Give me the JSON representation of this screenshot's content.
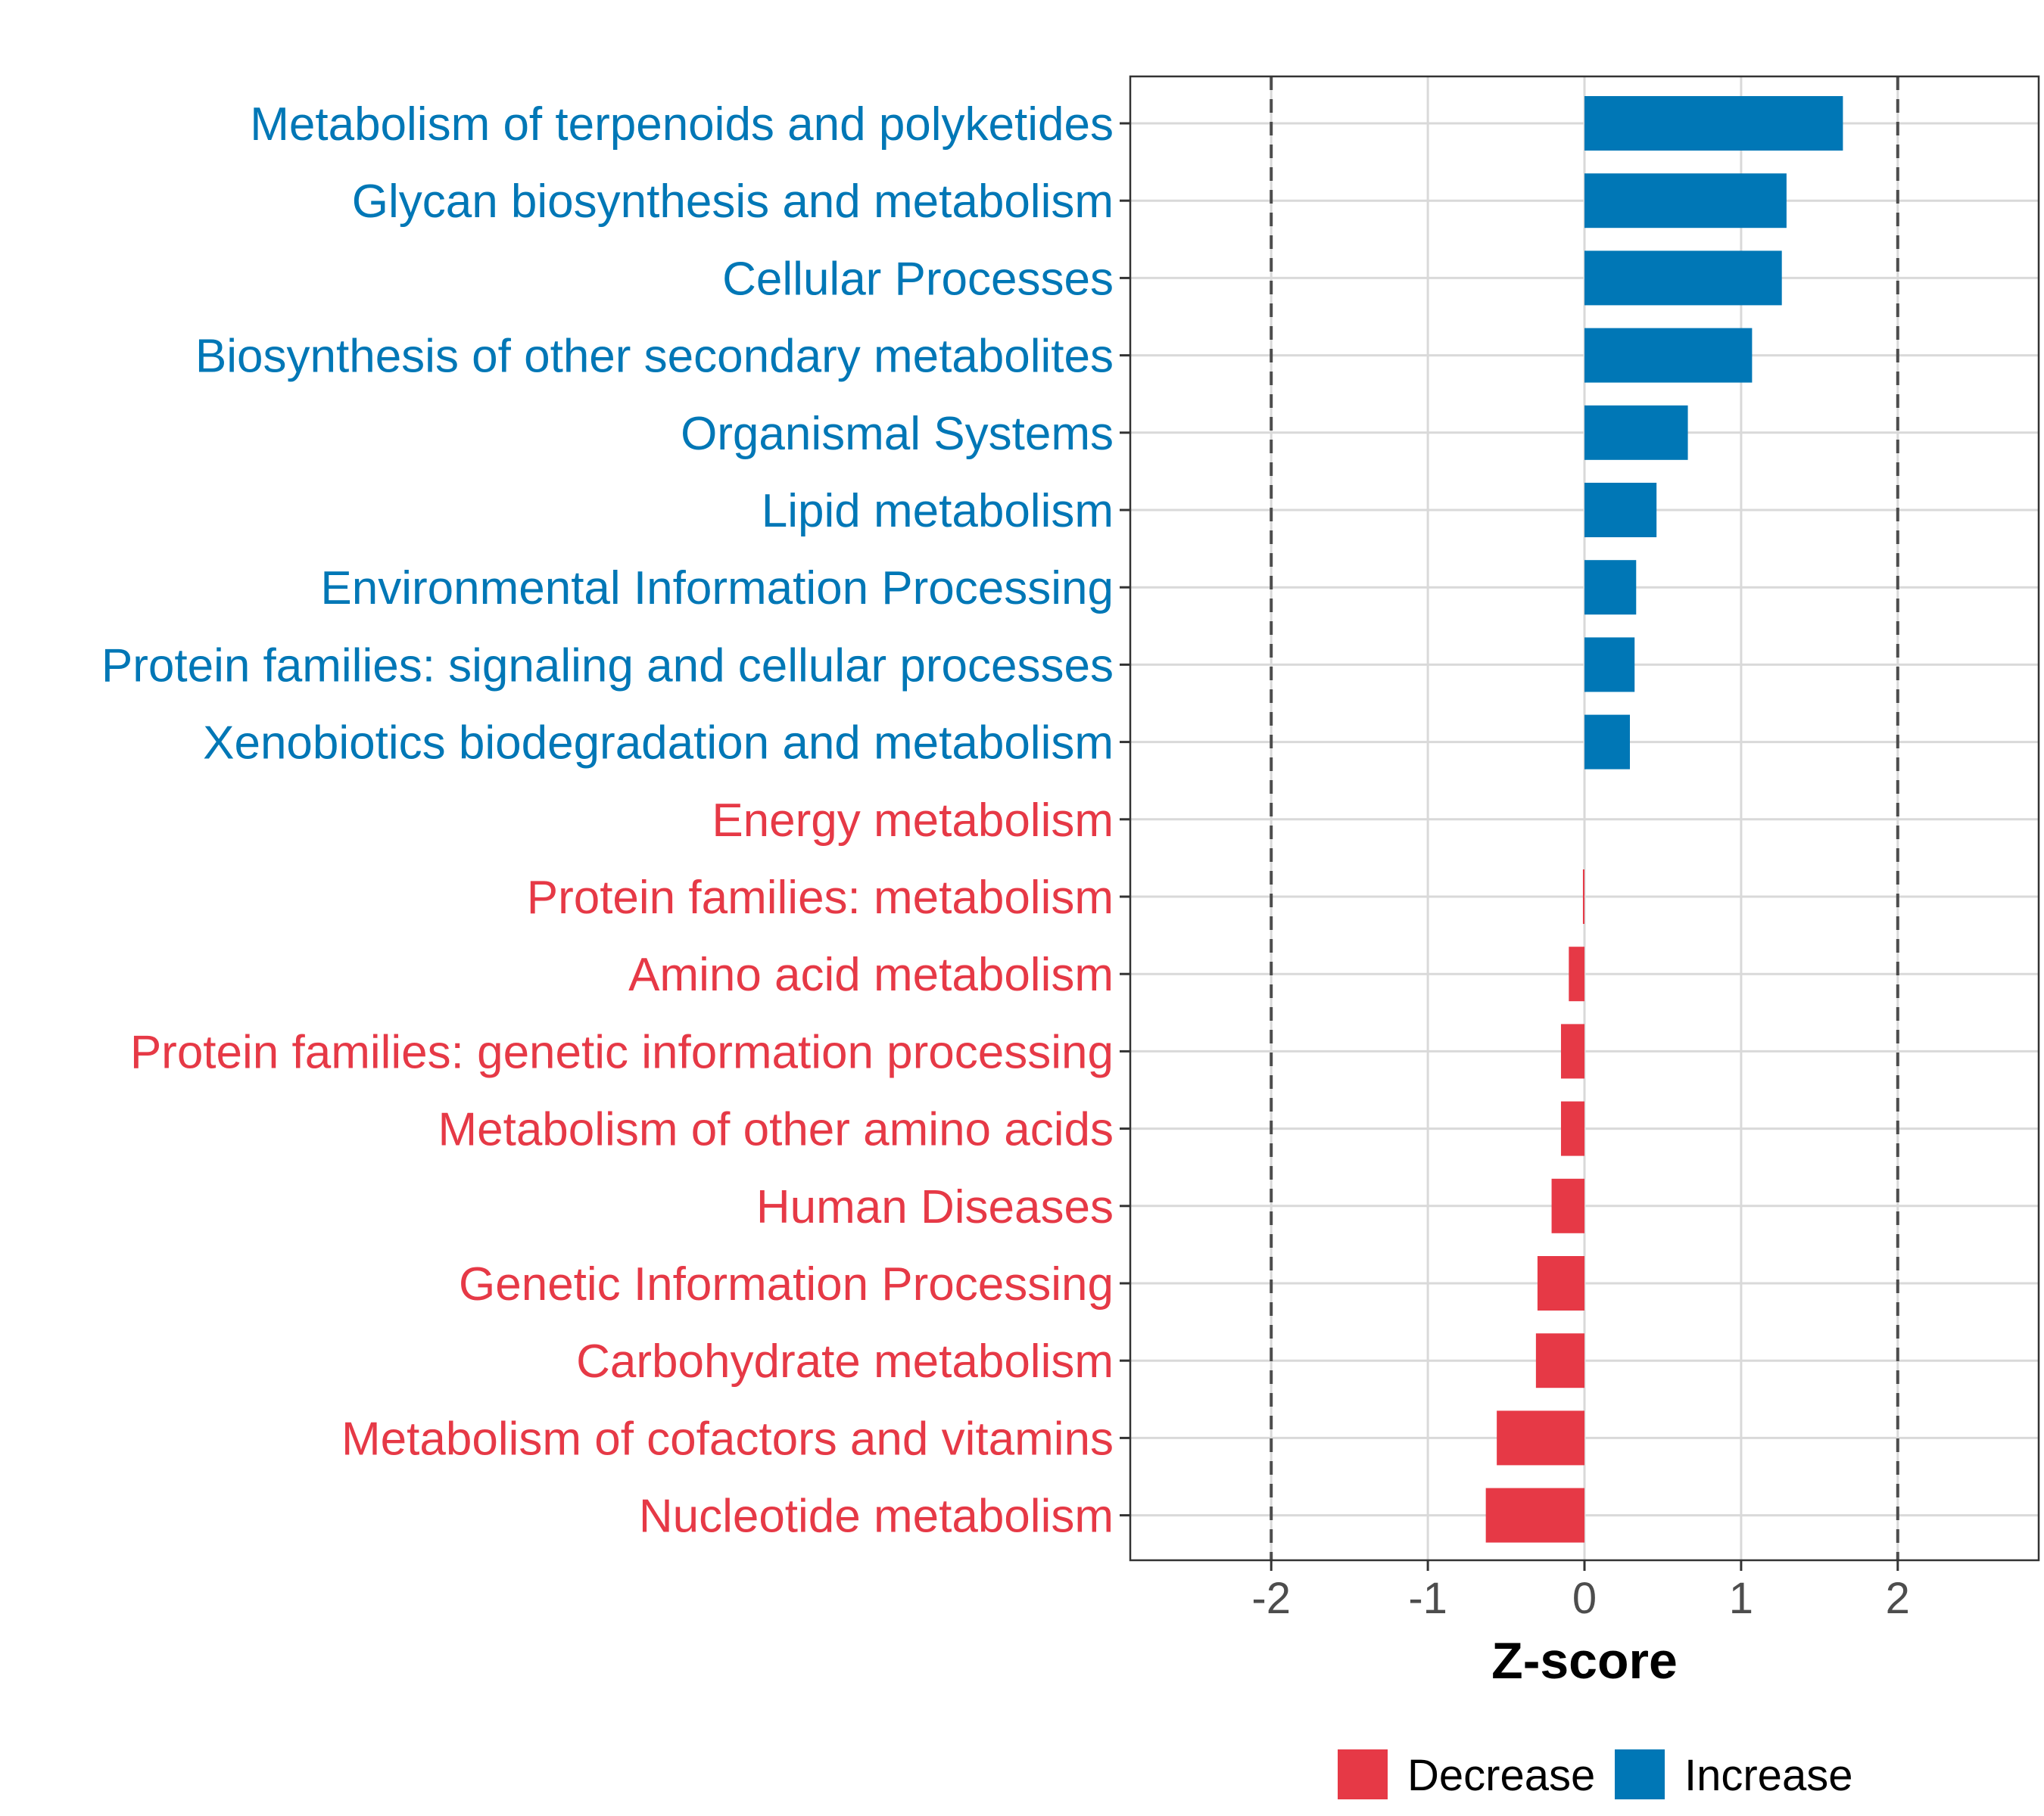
{
  "colors": {
    "increase": "#0077B6",
    "decrease": "#E63946",
    "grid": "#D9D9D9",
    "ref_line": "#4D4D4D",
    "panel_border": "#333333"
  },
  "chart_data": {
    "type": "bar",
    "orientation": "horizontal",
    "xlabel": "Z-score",
    "ylabel": "",
    "xlim": [
      -2.9,
      2.9
    ],
    "xticks": [
      -2,
      -1,
      0,
      1,
      2
    ],
    "xtick_labels": [
      "-2",
      "-1",
      "0",
      "1",
      "2"
    ],
    "reference_lines": [
      -2,
      2
    ],
    "grid": true,
    "legend_position": "bottom",
    "legend": [
      {
        "key": "decrease",
        "label": "Decrease"
      },
      {
        "key": "increase",
        "label": "Increase"
      }
    ],
    "categories": [
      "Metabolism of terpenoids and polyketides",
      "Glycan biosynthesis and metabolism",
      "Cellular Processes",
      "Biosynthesis of other secondary metabolites",
      "Organismal Systems",
      "Lipid metabolism",
      "Environmental Information Processing",
      "Protein families: signaling and cellular processes",
      "Xenobiotics biodegradation and metabolism",
      "Energy metabolism",
      "Protein families: metabolism",
      "Amino acid metabolism",
      "Protein families: genetic information processing",
      "Metabolism of other amino acids",
      "Human Diseases",
      "Genetic Information Processing",
      "Carbohydrate metabolism",
      "Metabolism of cofactors and vitamins",
      "Nucleotide metabolism"
    ],
    "values": [
      1.65,
      1.29,
      1.26,
      1.07,
      0.66,
      0.46,
      0.33,
      0.32,
      0.29,
      0.0,
      -0.01,
      -0.1,
      -0.15,
      -0.15,
      -0.21,
      -0.3,
      -0.31,
      -0.56,
      -0.63
    ],
    "groups": [
      "increase",
      "increase",
      "increase",
      "increase",
      "increase",
      "increase",
      "increase",
      "increase",
      "increase",
      "decrease",
      "decrease",
      "decrease",
      "decrease",
      "decrease",
      "decrease",
      "decrease",
      "decrease",
      "decrease",
      "decrease"
    ]
  }
}
